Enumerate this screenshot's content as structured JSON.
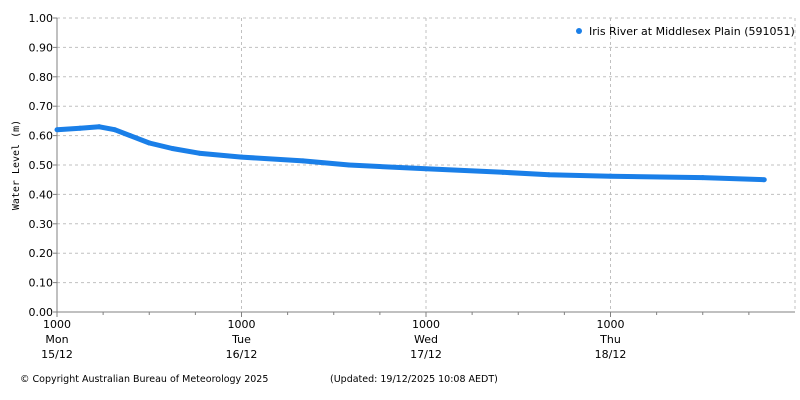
{
  "chart_data": {
    "type": "line",
    "title": "",
    "xlabel": "",
    "ylabel": "Water Level (m)",
    "ylim": [
      0,
      1
    ],
    "yticks": [
      "0.00",
      "0.10",
      "0.20",
      "0.30",
      "0.40",
      "0.50",
      "0.60",
      "0.70",
      "0.80",
      "0.90",
      "1.00"
    ],
    "xlim": [
      "2025-12-15T10:00",
      "2025-12-19T10:00"
    ],
    "xticks": [
      {
        "time": "1000",
        "day": "Mon",
        "date": "15/12"
      },
      {
        "time": "1000",
        "day": "Tue",
        "date": "16/12"
      },
      {
        "time": "1000",
        "day": "Wed",
        "date": "17/12"
      },
      {
        "time": "1000",
        "day": "Thu",
        "date": "18/12"
      }
    ],
    "grid": true,
    "legend_position": "top-right",
    "series": [
      {
        "name": "Iris River at Middlesex Plain (591051)",
        "color": "#1a7fe8",
        "points": [
          [
            "2025-12-15T10:00",
            0.62
          ],
          [
            "2025-12-15T13:00",
            0.625
          ],
          [
            "2025-12-15T15:30",
            0.63
          ],
          [
            "2025-12-15T17:30",
            0.62
          ],
          [
            "2025-12-15T19:30",
            0.6
          ],
          [
            "2025-12-15T22:00",
            0.575
          ],
          [
            "2025-12-16T01:00",
            0.556
          ],
          [
            "2025-12-16T04:30",
            0.54
          ],
          [
            "2025-12-16T10:00",
            0.527
          ],
          [
            "2025-12-16T18:00",
            0.514
          ],
          [
            "2025-12-17T00:00",
            0.5
          ],
          [
            "2025-12-17T10:00",
            0.487
          ],
          [
            "2025-12-17T20:00",
            0.475
          ],
          [
            "2025-12-18T02:00",
            0.467
          ],
          [
            "2025-12-18T10:00",
            0.462
          ],
          [
            "2025-12-18T22:00",
            0.457
          ],
          [
            "2025-12-19T06:00",
            0.45
          ]
        ]
      }
    ]
  },
  "footer": {
    "copyright": "© Copyright Australian Bureau of Meteorology 2025",
    "updated": "(Updated: 19/12/2025 10:08 AEDT)"
  }
}
